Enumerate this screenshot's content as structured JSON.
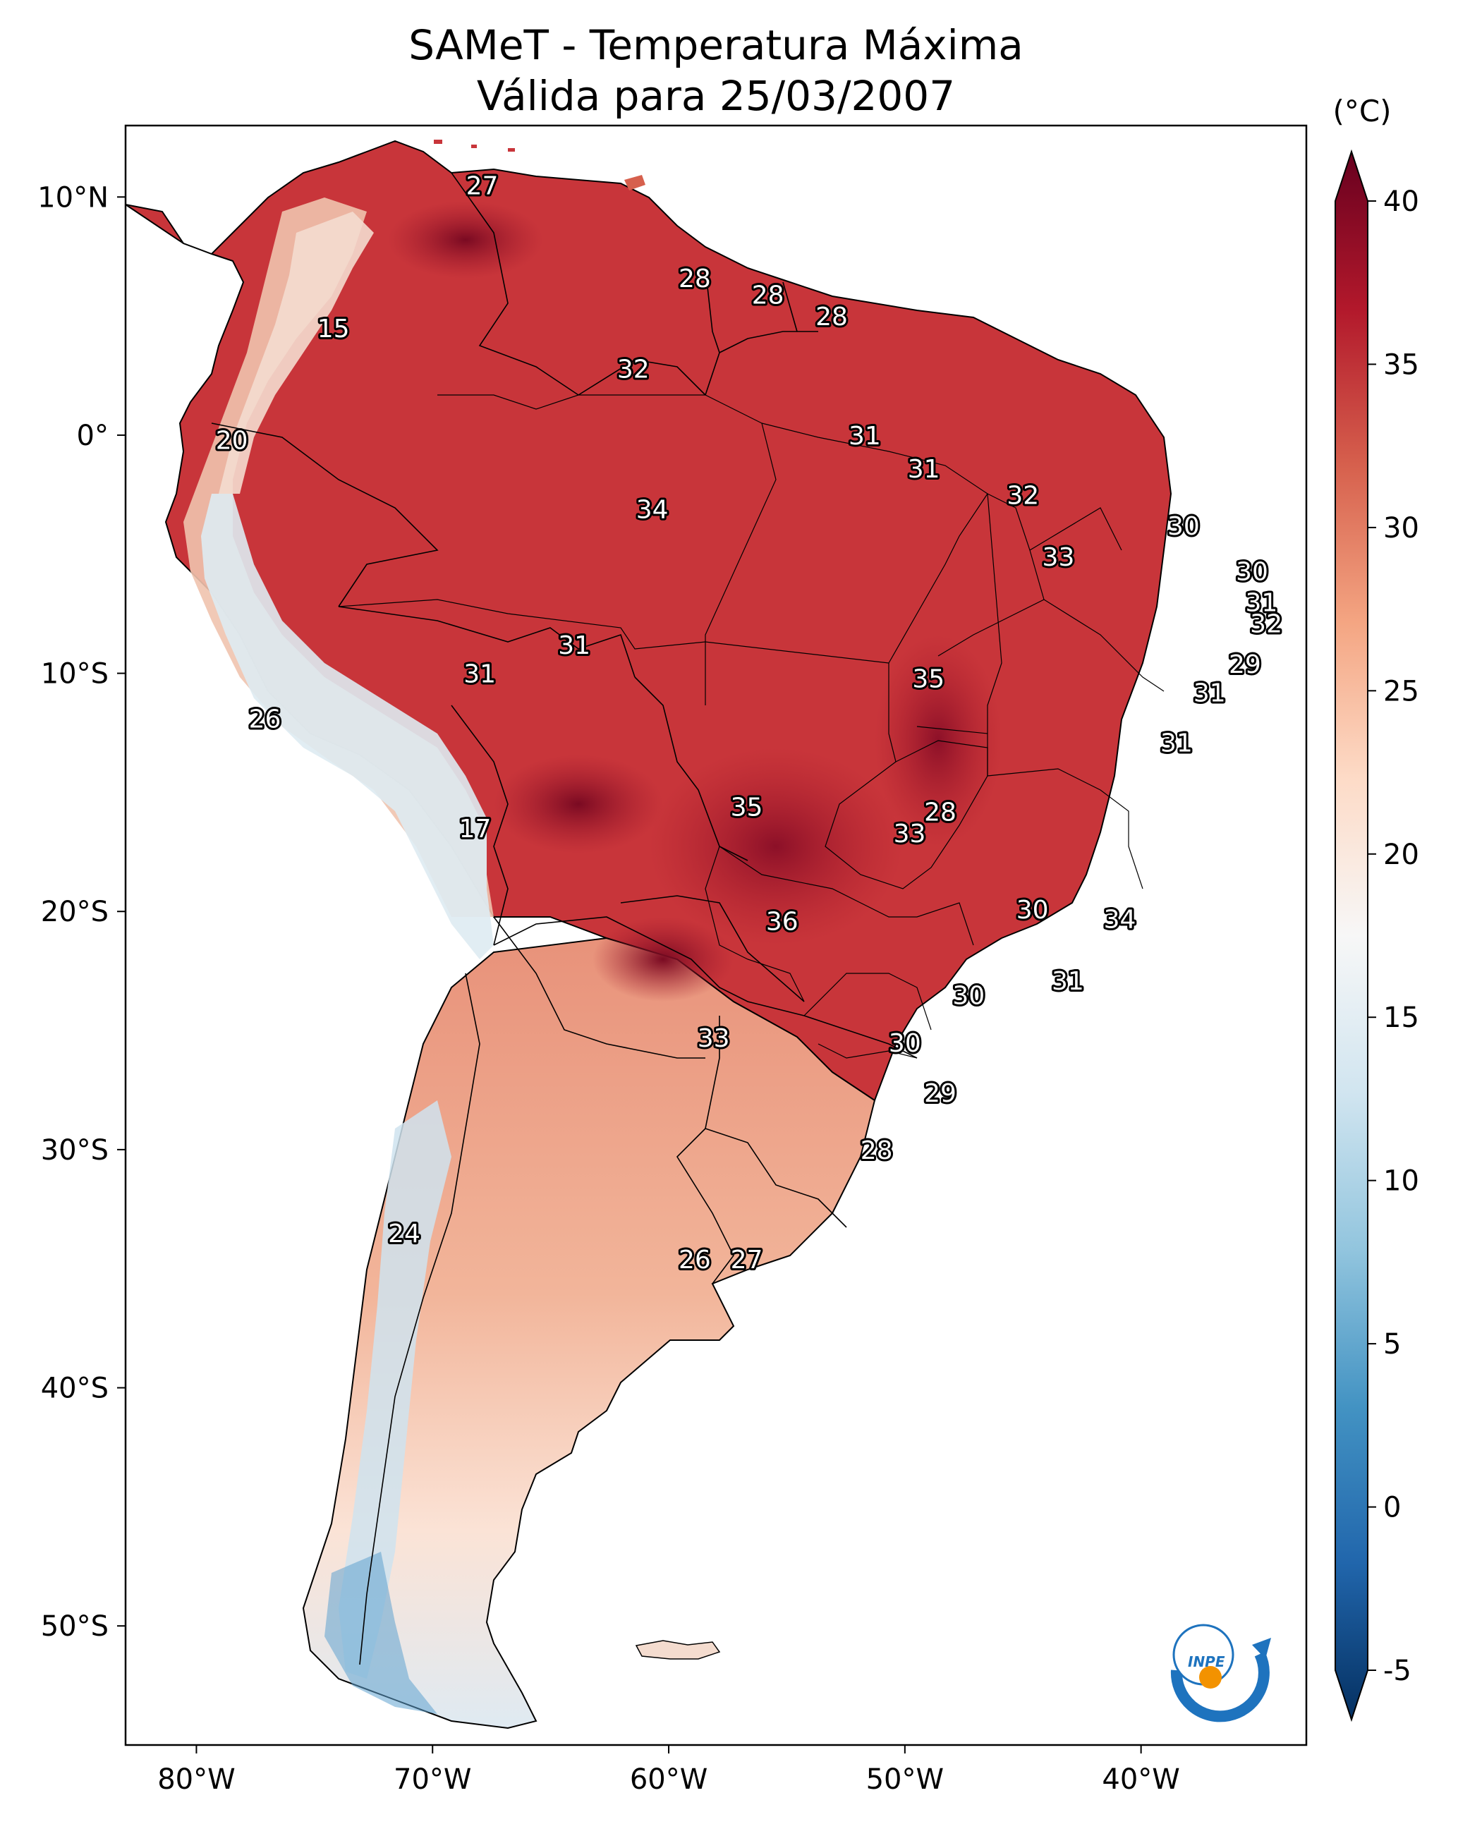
{
  "title": {
    "line1": "SAMeT - Temperatura Máxima",
    "line2": "Válida para 25/03/2007"
  },
  "map": {
    "lon_ticks": [
      "80°W",
      "70°W",
      "60°W",
      "50°W",
      "40°W"
    ],
    "lat_ticks": [
      "10°N",
      "0°",
      "10°S",
      "20°S",
      "30°S",
      "40°S",
      "50°S"
    ],
    "lon_range": [
      -83,
      -33
    ],
    "lat_range": [
      -55,
      13
    ],
    "station_labels": [
      {
        "text": "27",
        "lon": -67.9,
        "lat": 10.5
      },
      {
        "text": "15",
        "lon": -74.2,
        "lat": 4.5
      },
      {
        "text": "28",
        "lon": -58.9,
        "lat": 6.6
      },
      {
        "text": "28",
        "lon": -55.8,
        "lat": 5.9
      },
      {
        "text": "28",
        "lon": -53.1,
        "lat": 5.0
      },
      {
        "text": "32",
        "lon": -61.5,
        "lat": 2.8
      },
      {
        "text": "20",
        "lon": -78.5,
        "lat": -0.2
      },
      {
        "text": "31",
        "lon": -51.7,
        "lat": 0.0
      },
      {
        "text": "31",
        "lon": -49.2,
        "lat": -1.4
      },
      {
        "text": "32",
        "lon": -45.0,
        "lat": -2.5
      },
      {
        "text": "34",
        "lon": -60.7,
        "lat": -3.1
      },
      {
        "text": "30",
        "lon": -38.2,
        "lat": -3.8
      },
      {
        "text": "33",
        "lon": -43.5,
        "lat": -5.1
      },
      {
        "text": "30",
        "lon": -35.3,
        "lat": -5.7
      },
      {
        "text": "31",
        "lon": -34.9,
        "lat": -7.0
      },
      {
        "text": "32",
        "lon": -34.7,
        "lat": -7.9
      },
      {
        "text": "31",
        "lon": -64.0,
        "lat": -8.8
      },
      {
        "text": "29",
        "lon": -35.6,
        "lat": -9.6
      },
      {
        "text": "31",
        "lon": -68.0,
        "lat": -10.0
      },
      {
        "text": "35",
        "lon": -49.0,
        "lat": -10.2
      },
      {
        "text": "31",
        "lon": -37.1,
        "lat": -10.8
      },
      {
        "text": "26",
        "lon": -77.1,
        "lat": -11.9
      },
      {
        "text": "31",
        "lon": -38.5,
        "lat": -12.9
      },
      {
        "text": "35",
        "lon": -56.7,
        "lat": -15.6
      },
      {
        "text": "28",
        "lon": -48.5,
        "lat": -15.8
      },
      {
        "text": "33",
        "lon": -49.8,
        "lat": -16.7
      },
      {
        "text": "17",
        "lon": -68.2,
        "lat": -16.5
      },
      {
        "text": "30",
        "lon": -44.6,
        "lat": -19.9
      },
      {
        "text": "34",
        "lon": -40.9,
        "lat": -20.3
      },
      {
        "text": "36",
        "lon": -55.2,
        "lat": -20.4
      },
      {
        "text": "31",
        "lon": -43.1,
        "lat": -22.9
      },
      {
        "text": "30",
        "lon": -47.3,
        "lat": -23.5
      },
      {
        "text": "33",
        "lon": -58.1,
        "lat": -25.3
      },
      {
        "text": "30",
        "lon": -50.0,
        "lat": -25.5
      },
      {
        "text": "29",
        "lon": -48.5,
        "lat": -27.6
      },
      {
        "text": "28",
        "lon": -51.2,
        "lat": -30.0
      },
      {
        "text": "24",
        "lon": -71.2,
        "lat": -33.5
      },
      {
        "text": "26",
        "lon": -58.9,
        "lat": -34.6
      },
      {
        "text": "27",
        "lon": -56.7,
        "lat": -34.6
      }
    ]
  },
  "colorbar": {
    "unit": "(°C)",
    "min": -5,
    "max": 40,
    "ticks": [
      "40",
      "35",
      "30",
      "25",
      "20",
      "15",
      "10",
      "5",
      "0",
      "-5"
    ],
    "extend": "both",
    "colormap": [
      "#053061",
      "#2166ac",
      "#4393c3",
      "#92c5de",
      "#d1e5f0",
      "#f7f7f7",
      "#fddbc7",
      "#f4a582",
      "#d6604d",
      "#b2182b",
      "#67001f"
    ]
  },
  "logo": {
    "text": "INPE",
    "blue": "#1e73be",
    "orange": "#f39200"
  }
}
